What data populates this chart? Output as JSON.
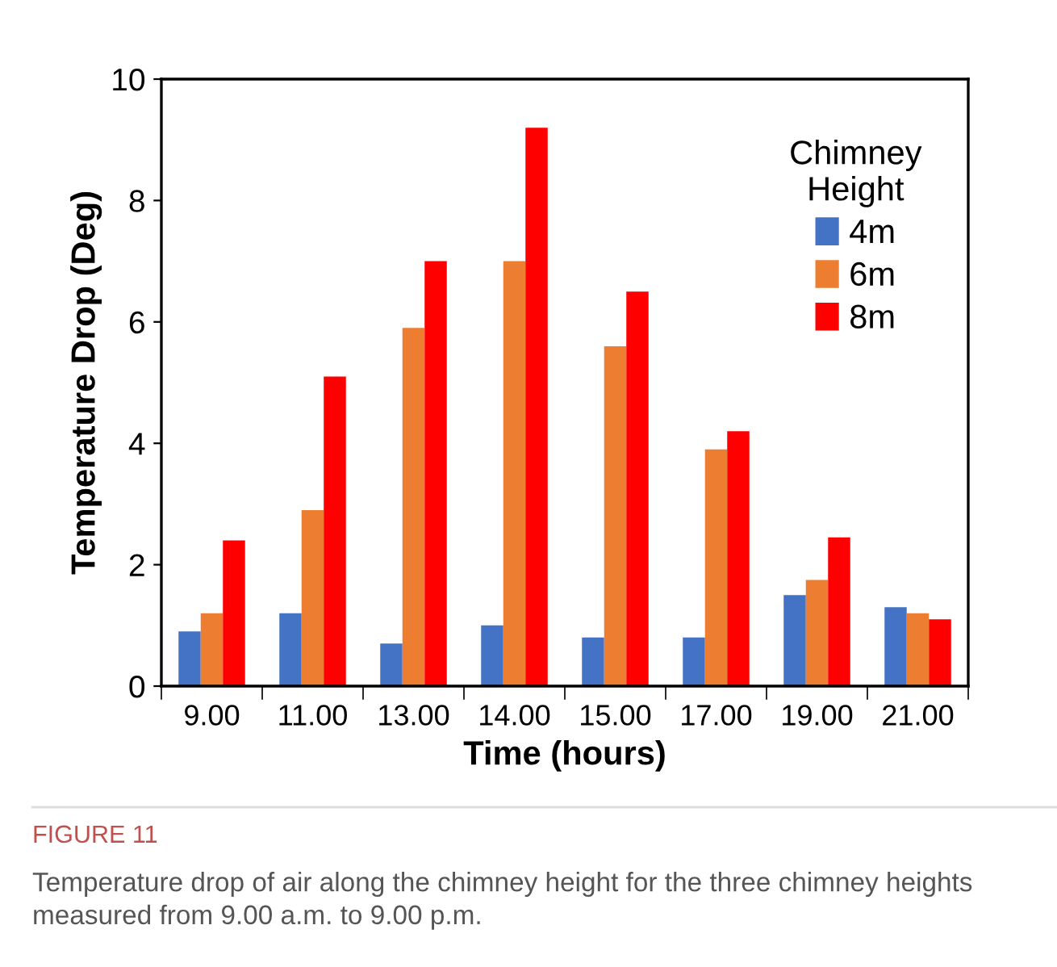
{
  "chart_data": {
    "type": "bar",
    "xlabel": "Time (hours)",
    "ylabel": "Temperature Drop (Deg)",
    "legend_title": "Chimney\nHeight",
    "categories": [
      "9.00",
      "11.00",
      "13.00",
      "14.00",
      "15.00",
      "17.00",
      "19.00",
      "21.00"
    ],
    "series": [
      {
        "name": "4m",
        "color": "#4472c4",
        "values": [
          0.9,
          1.2,
          0.7,
          1.0,
          0.8,
          0.8,
          1.5,
          1.3
        ]
      },
      {
        "name": "6m",
        "color": "#ed7d31",
        "values": [
          1.2,
          2.9,
          5.9,
          7.0,
          5.6,
          3.9,
          1.75,
          1.2
        ]
      },
      {
        "name": "8m",
        "color": "#ff0000",
        "values": [
          2.4,
          5.1,
          7.0,
          9.2,
          6.5,
          4.2,
          2.45,
          1.1
        ]
      }
    ],
    "ylim": [
      0,
      10
    ],
    "yticks": [
      0,
      2,
      4,
      6,
      8,
      10
    ],
    "grid": false,
    "legend": "top right",
    "annotations": [
      "FIGURE 11",
      "Temperature drop of air along the chimney height for the three chimney heights measured from 9.00 a.m. to 9.00 p.m."
    ]
  }
}
